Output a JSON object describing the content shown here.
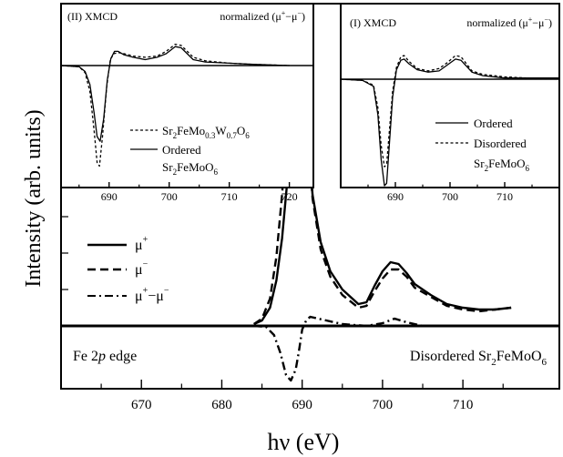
{
  "colors": {
    "line": "#000000",
    "background": "#ffffff"
  },
  "chart_data": [
    {
      "type": "line",
      "xlabel": "hν (eV)",
      "ylabel": "Intensity (arb. units)",
      "xlim": [
        660,
        722
      ],
      "xticks": [
        "670",
        "680",
        "690",
        "700",
        "710"
      ],
      "y_tick_labels": "none",
      "annotations": {
        "edge": {
          "pre": "Fe 2",
          "ital": "p",
          "post": " edge"
        },
        "sample": {
          "pre": "Disordered Sr",
          "s1": "2",
          "mid": "FeMoO",
          "s2": "6"
        }
      },
      "legend_placement": "left",
      "series": [
        {
          "name": "μ",
          "sup": "+",
          "style": "solid",
          "x": [
            684,
            685,
            686,
            686.8,
            687.5,
            688.2,
            689,
            689.5,
            690,
            690.6,
            691.3,
            692.3,
            693.5,
            695,
            697,
            698,
            699,
            700,
            701,
            702,
            703,
            704,
            706,
            708,
            710,
            712,
            714,
            716
          ],
          "y": [
            0.01,
            0.03,
            0.1,
            0.25,
            0.48,
            0.82,
            1.35,
            1.46,
            1.4,
            1.1,
            0.72,
            0.46,
            0.3,
            0.2,
            0.12,
            0.13,
            0.22,
            0.3,
            0.35,
            0.34,
            0.29,
            0.23,
            0.17,
            0.12,
            0.1,
            0.09,
            0.09,
            0.1
          ]
        },
        {
          "name": "μ",
          "sup": "−",
          "style": "dashed",
          "x": [
            684,
            685,
            686,
            686.8,
            687.5,
            688.2,
            689,
            689.5,
            690,
            690.6,
            691.3,
            692.3,
            693.5,
            695,
            697,
            698,
            699,
            700,
            701,
            702,
            703,
            704,
            706,
            708,
            710,
            712,
            714,
            716
          ],
          "y": [
            0.01,
            0.04,
            0.15,
            0.38,
            0.72,
            1.15,
            1.5,
            1.6,
            1.52,
            1.13,
            0.7,
            0.42,
            0.27,
            0.17,
            0.1,
            0.11,
            0.19,
            0.26,
            0.31,
            0.31,
            0.27,
            0.21,
            0.16,
            0.11,
            0.09,
            0.08,
            0.09,
            0.1
          ]
        },
        {
          "name": "μ",
          "sup": "+",
          "mid": "−μ",
          "sup2": "−",
          "style": "dashdot",
          "x": [
            684,
            685.5,
            686.5,
            687.3,
            688,
            688.6,
            689.2,
            689.6,
            690,
            690.5,
            691,
            692,
            693,
            695,
            698,
            700,
            701.5,
            703,
            705,
            708
          ],
          "y": [
            0,
            -0.005,
            -0.05,
            -0.15,
            -0.27,
            -0.3,
            -0.24,
            -0.14,
            -0.02,
            0.03,
            0.05,
            0.04,
            0.03,
            0.01,
            0,
            0.015,
            0.04,
            0.02,
            0,
            0
          ]
        }
      ]
    },
    {
      "type": "line",
      "title": "(II) XMCD",
      "note": {
        "pre": "normalized (μ",
        "s1": "+",
        "mid": "−μ",
        "s2": "−",
        "post": ")"
      },
      "xlim": [
        682,
        724
      ],
      "xticks": [
        "690",
        "700",
        "710",
        "720"
      ],
      "legend": [
        {
          "pre": "Sr",
          "s1": "2",
          "mid": "FeMo",
          "s2": "0.3",
          "mid2": "W",
          "s3": "0.7",
          "post": "O",
          "s4": "6",
          "style": "dashed"
        },
        {
          "pre": "Ordered",
          "style": "solid"
        },
        {
          "pre": "Sr",
          "s1": "2",
          "mid": "FeMoO",
          "s2": "6",
          "style": "none"
        }
      ],
      "series": [
        {
          "name": "dashed",
          "style": "dashed",
          "x": [
            682,
            685,
            686,
            686.8,
            687.5,
            688,
            688.4,
            688.9,
            689.6,
            690.2,
            690.8,
            691.5,
            692.5,
            694,
            696,
            698,
            699.5,
            701,
            702,
            703,
            704,
            706,
            710,
            714,
            720
          ],
          "y": [
            0,
            -0.01,
            -0.06,
            -0.22,
            -0.55,
            -0.82,
            -0.85,
            -0.6,
            -0.18,
            0.05,
            0.1,
            0.11,
            0.1,
            0.08,
            0.07,
            0.08,
            0.12,
            0.18,
            0.17,
            0.12,
            0.07,
            0.04,
            0.02,
            0.01,
            0
          ]
        },
        {
          "name": "solid",
          "style": "solid",
          "x": [
            682,
            685,
            686,
            686.8,
            687.5,
            688,
            688.5,
            689.1,
            689.7,
            690.3,
            690.9,
            691.5,
            692.5,
            694,
            696,
            698,
            699.5,
            701,
            702,
            703,
            704,
            706,
            710,
            714,
            720
          ],
          "y": [
            0,
            -0.01,
            -0.05,
            -0.16,
            -0.4,
            -0.6,
            -0.64,
            -0.45,
            -0.12,
            0.06,
            0.12,
            0.12,
            0.09,
            0.07,
            0.05,
            0.07,
            0.1,
            0.16,
            0.15,
            0.1,
            0.05,
            0.03,
            0.02,
            0.01,
            0
          ]
        }
      ]
    },
    {
      "type": "line",
      "title": "(I) XMCD",
      "note": {
        "pre": "normalized (μ",
        "s1": "+",
        "mid": "−μ",
        "s2": "−",
        "post": ")"
      },
      "xlim": [
        680,
        720
      ],
      "xticks": [
        "690",
        "700",
        "710"
      ],
      "legend": [
        {
          "pre": "Ordered",
          "style": "solid"
        },
        {
          "pre": "Disordered",
          "style": "dashed"
        },
        {
          "pre": "Sr",
          "s1": "2",
          "mid": "FeMoO",
          "s2": "6",
          "style": "none"
        }
      ],
      "series": [
        {
          "name": "solid",
          "style": "solid",
          "x": [
            680,
            684,
            686,
            686.8,
            687.4,
            688,
            688.4,
            688.9,
            689.5,
            690.2,
            691,
            691.6,
            692.5,
            694,
            696,
            698,
            699.5,
            701,
            702,
            703,
            704,
            706,
            710,
            714,
            720
          ],
          "y": [
            0,
            -0.01,
            -0.06,
            -0.3,
            -0.68,
            -0.9,
            -0.88,
            -0.55,
            -0.15,
            0.08,
            0.16,
            0.17,
            0.13,
            0.08,
            0.06,
            0.07,
            0.12,
            0.17,
            0.16,
            0.11,
            0.06,
            0.03,
            0.01,
            0.01,
            0.01
          ]
        },
        {
          "name": "dashed",
          "style": "dashed",
          "x": [
            680,
            684,
            686,
            686.8,
            687.4,
            688,
            688.4,
            688.9,
            689.5,
            690.2,
            691,
            691.6,
            692.5,
            694,
            696,
            698,
            699.5,
            701,
            702,
            703,
            704,
            706,
            710,
            714,
            720
          ],
          "y": [
            0,
            -0.01,
            -0.05,
            -0.24,
            -0.56,
            -0.74,
            -0.72,
            -0.44,
            -0.1,
            0.1,
            0.19,
            0.2,
            0.15,
            0.09,
            0.07,
            0.09,
            0.14,
            0.2,
            0.19,
            0.13,
            0.07,
            0.04,
            0.02,
            0.01,
            0.01
          ]
        }
      ]
    }
  ]
}
